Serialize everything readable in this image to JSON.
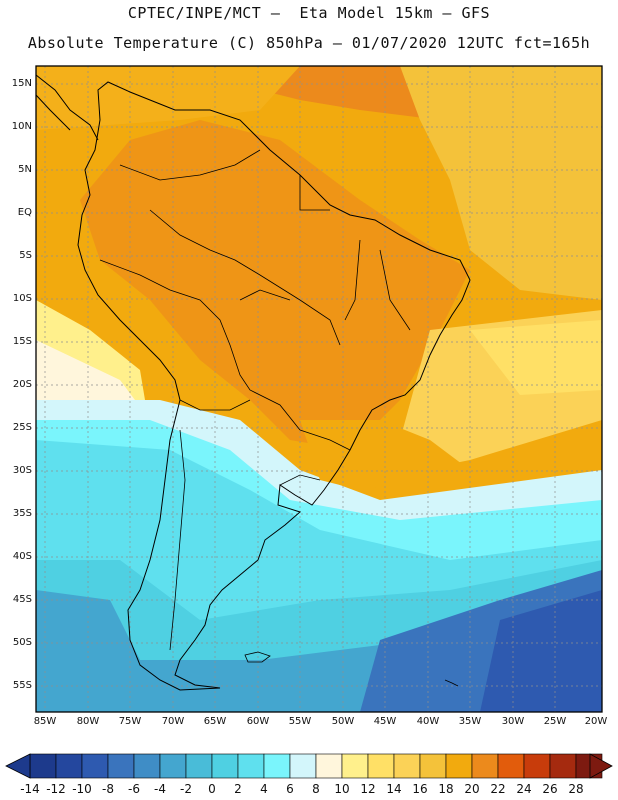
{
  "header": {
    "line1": "CPTEC/INPE/MCT —  Eta Model 15km — GFS",
    "line2": "Absolute Temperature (C) 850hPa — 01/07/2020 12UTC fct=165h"
  },
  "axes": {
    "lat_labels": [
      "15N",
      "10N",
      "5N",
      "EQ",
      "5S",
      "10S",
      "15S",
      "20S",
      "25S",
      "30S",
      "35S",
      "40S",
      "45S",
      "50S",
      "55S"
    ],
    "lon_labels": [
      "85W",
      "80W",
      "75W",
      "70W",
      "65W",
      "60W",
      "55W",
      "50W",
      "45W",
      "40W",
      "35W",
      "30W",
      "25W",
      "20W"
    ]
  },
  "colorbar": {
    "labels": [
      "-14",
      "-12",
      "-10",
      "-8",
      "-6",
      "-4",
      "-2",
      "0",
      "2",
      "4",
      "6",
      "8",
      "10",
      "12",
      "14",
      "16",
      "18",
      "20",
      "22",
      "24",
      "26",
      "28"
    ],
    "colors": [
      "#1d3a8c",
      "#24479e",
      "#2e5ab0",
      "#3a74bd",
      "#3f8dc6",
      "#44a6cf",
      "#49bcd8",
      "#4fd0e2",
      "#5fe0ee",
      "#7af5fc",
      "#d3f6fb",
      "#fff6dc",
      "#fff08c",
      "#ffe066",
      "#fbd257",
      "#f4c23a",
      "#f2aa0e",
      "#ec8a1c",
      "#e25c0c",
      "#c83c0b",
      "#a52a0f",
      "#7d1a10"
    ],
    "low_color": "#1d3a8c",
    "high_color": "#7d1a10"
  }
}
